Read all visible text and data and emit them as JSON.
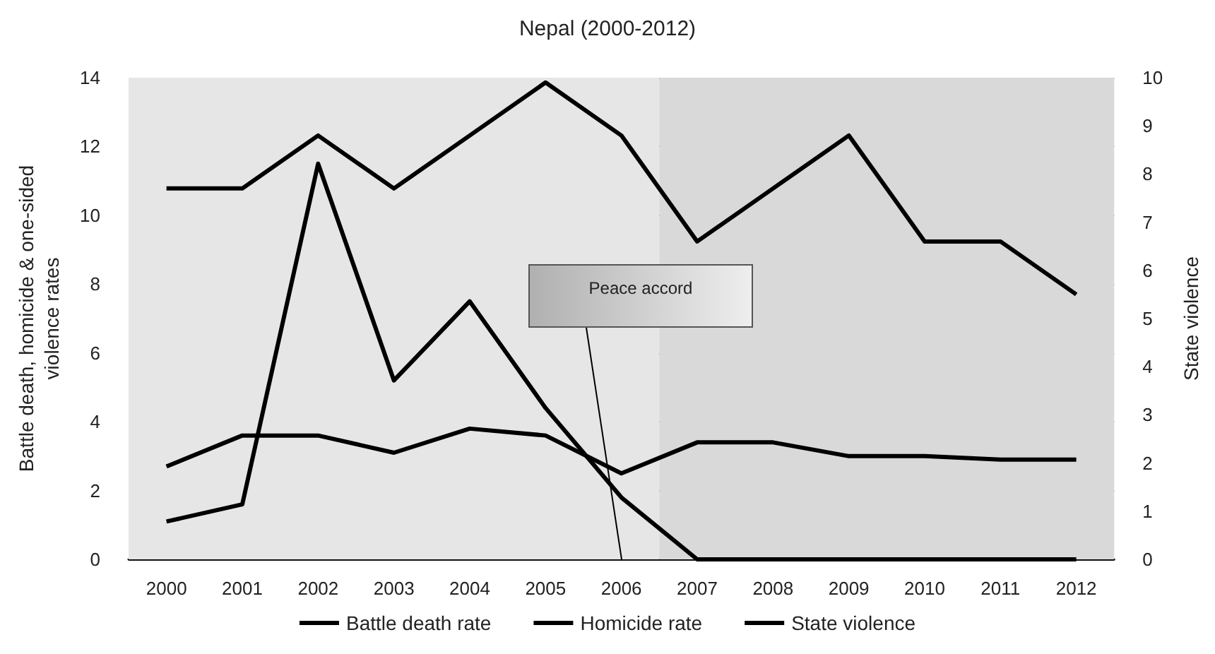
{
  "chart_data": {
    "type": "line",
    "title": "Nepal (2000-2012)",
    "ylabel": "Battle death, homicide & one-sided violence rates",
    "y2label": "State violence",
    "categories": [
      "2000",
      "2001",
      "2002",
      "2003",
      "2004",
      "2005",
      "2006",
      "2007",
      "2008",
      "2009",
      "2010",
      "2011",
      "2012"
    ],
    "series": [
      {
        "name": "Battle death rate",
        "color": "#000000",
        "values": [
          1.1,
          1.6,
          11.5,
          5.2,
          7.5,
          4.4,
          1.8,
          0,
          0,
          0,
          0,
          0,
          0
        ]
      },
      {
        "name": "Homicide rate",
        "color": "#000000",
        "values": [
          2.7,
          3.6,
          3.6,
          3.1,
          3.8,
          3.6,
          2.5,
          3.4,
          3.4,
          3.0,
          3.0,
          2.9,
          2.9
        ]
      },
      {
        "name": "State violence",
        "color": "#000000",
        "axis": "y2",
        "values": [
          7.7,
          7.7,
          8.8,
          7.7,
          8.8,
          9.9,
          8.8,
          6.6,
          7.7,
          8.8,
          6.6,
          6.6,
          5.5
        ]
      }
    ],
    "ylim": [
      0,
      14
    ],
    "yticks": [
      0,
      2,
      4,
      6,
      8,
      10,
      12,
      14
    ],
    "y2lim": [
      0,
      10
    ],
    "y2ticks": [
      0,
      1,
      2,
      3,
      4,
      5,
      6,
      7,
      8,
      9,
      10
    ],
    "grid": "y",
    "legend": "bottom",
    "marker": "none",
    "line_style": "solid",
    "bands": [
      {
        "axis": "x",
        "from": "2000",
        "to": "2006",
        "color": "#e6e6e6"
      },
      {
        "axis": "x",
        "from": "2007",
        "to": "2012",
        "color": "#d9d9d9"
      }
    ],
    "annotations": [
      "Peace accord"
    ]
  }
}
